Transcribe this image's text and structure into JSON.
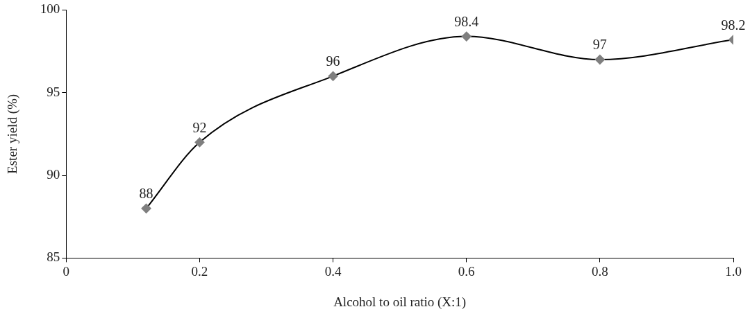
{
  "chart_data": {
    "type": "line",
    "xlabel": "Alcohol to oil ratio (X:1)",
    "ylabel": "Ester yield (%)",
    "x": [
      0.12,
      0.2,
      0.4,
      0.6,
      0.8,
      1.0
    ],
    "series": [
      {
        "color": "#000000",
        "values": [
          88,
          92,
          96,
          98.4,
          97,
          98.2
        ]
      }
    ],
    "xlim": [
      0,
      1
    ],
    "xticks": [
      0,
      0.2,
      0.4,
      0.6,
      0.8,
      {
        "value": 1,
        "label": "1.0"
      }
    ],
    "ylim": [
      85,
      100
    ],
    "yticks": [
      85,
      90,
      95,
      100
    ],
    "marker": "diamond",
    "line_style": "solid",
    "data_labels": true,
    "legend": false
  }
}
